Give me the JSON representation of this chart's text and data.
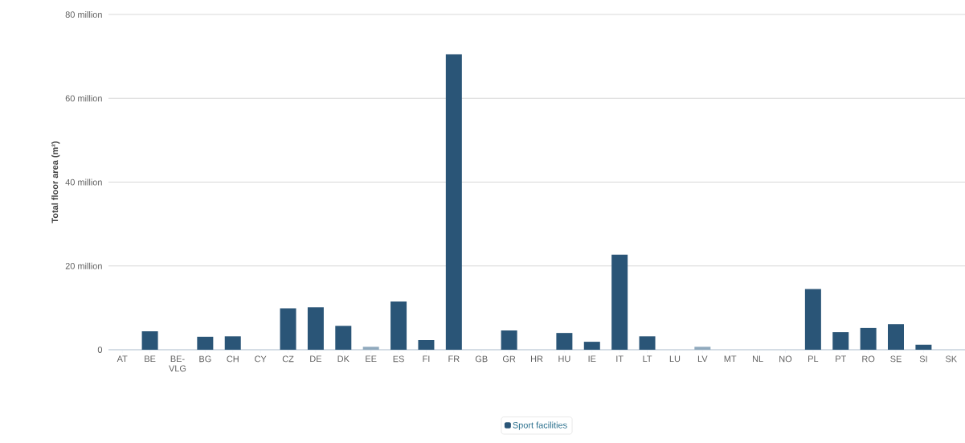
{
  "chart_data": {
    "type": "bar",
    "ylabel": "Total floor area (m²)",
    "categories": [
      "AT",
      "BE",
      "BE-VLG",
      "BG",
      "CH",
      "CY",
      "CZ",
      "DE",
      "DK",
      "EE",
      "ES",
      "FI",
      "FR",
      "GB",
      "GR",
      "HR",
      "HU",
      "IE",
      "IT",
      "LT",
      "LU",
      "LV",
      "MT",
      "NL",
      "NO",
      "PL",
      "PT",
      "RO",
      "SE",
      "SI",
      "SK"
    ],
    "series": [
      {
        "name": "Sport facilities",
        "color": "#2a5577",
        "values": [
          null,
          4400000,
          null,
          3100000,
          3200000,
          null,
          9900000,
          10100000,
          5700000,
          700000,
          11500000,
          2300000,
          70500000,
          null,
          4600000,
          null,
          4000000,
          1900000,
          22700000,
          3200000,
          null,
          700000,
          null,
          null,
          null,
          14500000,
          4200000,
          5200000,
          6100000,
          1200000,
          null
        ],
        "colors": [
          "#2a5577",
          "#2a5577",
          "#2a5577",
          "#2a5577",
          "#2a5577",
          "#2a5577",
          "#2a5577",
          "#2a5577",
          "#2a5577",
          "#8fa9bd",
          "#2a5577",
          "#2a5577",
          "#2a5577",
          "#2a5577",
          "#2a5577",
          "#2a5577",
          "#2a5577",
          "#2a5577",
          "#2a5577",
          "#2a5577",
          "#2a5577",
          "#8fa9bd",
          "#2a5577",
          "#2a5577",
          "#2a5577",
          "#2a5577",
          "#2a5577",
          "#2a5577",
          "#2a5577",
          "#2a5577",
          "#2a5577"
        ]
      }
    ],
    "ylim": [
      0,
      80000000
    ],
    "yticks": [
      0,
      {
        "value": 20000000,
        "label": "20 million"
      },
      {
        "value": 40000000,
        "label": "40 million"
      },
      {
        "value": 60000000,
        "label": "60 million"
      },
      {
        "value": 80000000,
        "label": "80 million"
      }
    ],
    "grid": "y",
    "legend": "bottom"
  }
}
